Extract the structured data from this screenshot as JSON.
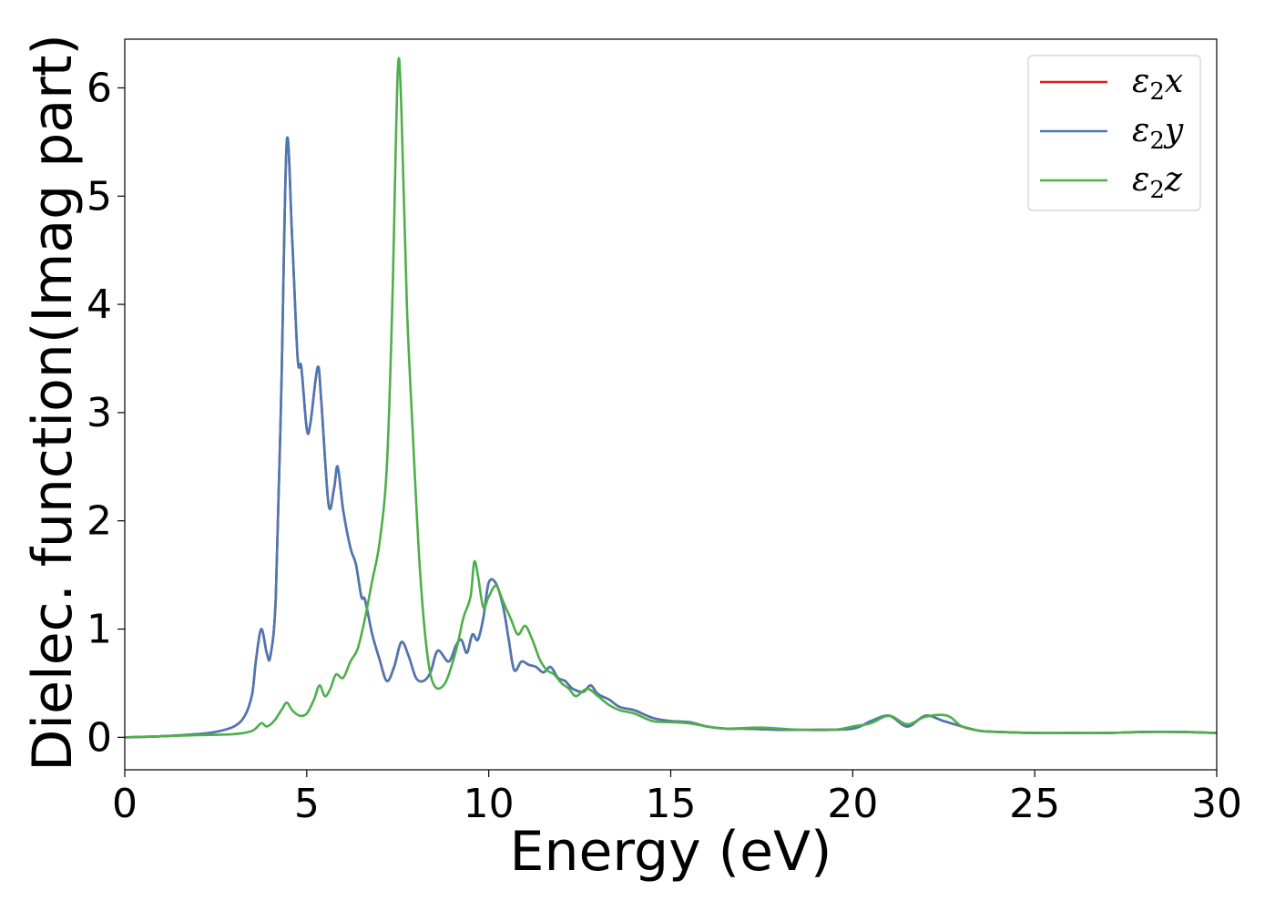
{
  "chart_data": {
    "type": "line",
    "title": "",
    "xlabel": "Energy (eV)",
    "ylabel": "Dielec. function(Imag part)",
    "xlim": [
      0,
      30
    ],
    "ylim": [
      -0.3,
      6.45
    ],
    "xticks": [
      0,
      5,
      10,
      15,
      20,
      25,
      30
    ],
    "yticks": [
      0,
      1,
      2,
      3,
      4,
      5,
      6
    ],
    "grid": false,
    "legend_position": "top-right",
    "series": [
      {
        "name": "ε₂x",
        "legend_parts": {
          "base": "ε",
          "sub": "2",
          "suffix": "x"
        },
        "color": "#e41a1c",
        "points": [
          [
            0,
            0
          ],
          [
            1,
            0.01
          ],
          [
            2,
            0.03
          ],
          [
            2.5,
            0.05
          ],
          [
            3,
            0.1
          ],
          [
            3.3,
            0.2
          ],
          [
            3.5,
            0.4
          ],
          [
            3.6,
            0.7
          ],
          [
            3.75,
            1.0
          ],
          [
            3.9,
            0.78
          ],
          [
            4.0,
            0.75
          ],
          [
            4.15,
            1.3
          ],
          [
            4.3,
            3.2
          ],
          [
            4.45,
            5.5
          ],
          [
            4.6,
            4.6
          ],
          [
            4.75,
            3.5
          ],
          [
            4.85,
            3.42
          ],
          [
            5.0,
            2.85
          ],
          [
            5.1,
            2.9
          ],
          [
            5.3,
            3.42
          ],
          [
            5.4,
            3.1
          ],
          [
            5.6,
            2.15
          ],
          [
            5.75,
            2.3
          ],
          [
            5.85,
            2.5
          ],
          [
            6.0,
            2.1
          ],
          [
            6.2,
            1.75
          ],
          [
            6.35,
            1.6
          ],
          [
            6.5,
            1.3
          ],
          [
            6.6,
            1.27
          ],
          [
            6.8,
            0.95
          ],
          [
            7.0,
            0.72
          ],
          [
            7.2,
            0.52
          ],
          [
            7.4,
            0.65
          ],
          [
            7.6,
            0.88
          ],
          [
            7.8,
            0.75
          ],
          [
            8.0,
            0.55
          ],
          [
            8.2,
            0.52
          ],
          [
            8.4,
            0.6
          ],
          [
            8.6,
            0.8
          ],
          [
            8.9,
            0.7
          ],
          [
            9.1,
            0.85
          ],
          [
            9.25,
            0.9
          ],
          [
            9.4,
            0.78
          ],
          [
            9.55,
            0.95
          ],
          [
            9.7,
            0.9
          ],
          [
            9.85,
            1.1
          ],
          [
            10.0,
            1.43
          ],
          [
            10.2,
            1.42
          ],
          [
            10.4,
            1.2
          ],
          [
            10.55,
            0.9
          ],
          [
            10.7,
            0.62
          ],
          [
            10.9,
            0.7
          ],
          [
            11.1,
            0.67
          ],
          [
            11.3,
            0.65
          ],
          [
            11.5,
            0.6
          ],
          [
            11.7,
            0.65
          ],
          [
            11.9,
            0.55
          ],
          [
            12.1,
            0.52
          ],
          [
            12.3,
            0.45
          ],
          [
            12.6,
            0.42
          ],
          [
            12.8,
            0.48
          ],
          [
            13.0,
            0.4
          ],
          [
            13.3,
            0.35
          ],
          [
            13.6,
            0.28
          ],
          [
            14.0,
            0.25
          ],
          [
            14.5,
            0.18
          ],
          [
            15.0,
            0.15
          ],
          [
            15.5,
            0.14
          ],
          [
            16.0,
            0.1
          ],
          [
            16.5,
            0.08
          ],
          [
            17.0,
            0.08
          ],
          [
            18.0,
            0.07
          ],
          [
            19.0,
            0.07
          ],
          [
            20.0,
            0.08
          ],
          [
            20.5,
            0.15
          ],
          [
            21.0,
            0.2
          ],
          [
            21.5,
            0.1
          ],
          [
            22.0,
            0.2
          ],
          [
            22.5,
            0.15
          ],
          [
            23.0,
            0.1
          ],
          [
            23.5,
            0.06
          ],
          [
            24.0,
            0.05
          ],
          [
            25.0,
            0.04
          ],
          [
            26.0,
            0.04
          ],
          [
            27.0,
            0.04
          ],
          [
            28.0,
            0.05
          ],
          [
            29.0,
            0.05
          ],
          [
            30.0,
            0.04
          ]
        ]
      },
      {
        "name": "ε₂y",
        "legend_parts": {
          "base": "ε",
          "sub": "2",
          "suffix": "y"
        },
        "color": "#4a78b4",
        "points": [
          [
            0,
            0
          ],
          [
            1,
            0.01
          ],
          [
            2,
            0.03
          ],
          [
            2.5,
            0.05
          ],
          [
            3,
            0.1
          ],
          [
            3.3,
            0.2
          ],
          [
            3.5,
            0.4
          ],
          [
            3.6,
            0.7
          ],
          [
            3.75,
            1.0
          ],
          [
            3.9,
            0.78
          ],
          [
            4.0,
            0.75
          ],
          [
            4.15,
            1.3
          ],
          [
            4.3,
            3.2
          ],
          [
            4.45,
            5.5
          ],
          [
            4.6,
            4.6
          ],
          [
            4.75,
            3.5
          ],
          [
            4.85,
            3.42
          ],
          [
            5.0,
            2.85
          ],
          [
            5.1,
            2.9
          ],
          [
            5.3,
            3.42
          ],
          [
            5.4,
            3.1
          ],
          [
            5.6,
            2.15
          ],
          [
            5.75,
            2.3
          ],
          [
            5.85,
            2.5
          ],
          [
            6.0,
            2.1
          ],
          [
            6.2,
            1.75
          ],
          [
            6.35,
            1.6
          ],
          [
            6.5,
            1.3
          ],
          [
            6.6,
            1.27
          ],
          [
            6.8,
            0.95
          ],
          [
            7.0,
            0.72
          ],
          [
            7.2,
            0.52
          ],
          [
            7.4,
            0.65
          ],
          [
            7.6,
            0.88
          ],
          [
            7.8,
            0.75
          ],
          [
            8.0,
            0.55
          ],
          [
            8.2,
            0.52
          ],
          [
            8.4,
            0.6
          ],
          [
            8.6,
            0.8
          ],
          [
            8.9,
            0.7
          ],
          [
            9.1,
            0.85
          ],
          [
            9.25,
            0.9
          ],
          [
            9.4,
            0.78
          ],
          [
            9.55,
            0.95
          ],
          [
            9.7,
            0.9
          ],
          [
            9.85,
            1.1
          ],
          [
            10.0,
            1.43
          ],
          [
            10.2,
            1.42
          ],
          [
            10.4,
            1.2
          ],
          [
            10.55,
            0.9
          ],
          [
            10.7,
            0.62
          ],
          [
            10.9,
            0.7
          ],
          [
            11.1,
            0.67
          ],
          [
            11.3,
            0.65
          ],
          [
            11.5,
            0.6
          ],
          [
            11.7,
            0.65
          ],
          [
            11.9,
            0.55
          ],
          [
            12.1,
            0.52
          ],
          [
            12.3,
            0.45
          ],
          [
            12.6,
            0.42
          ],
          [
            12.8,
            0.48
          ],
          [
            13.0,
            0.4
          ],
          [
            13.3,
            0.35
          ],
          [
            13.6,
            0.28
          ],
          [
            14.0,
            0.25
          ],
          [
            14.5,
            0.18
          ],
          [
            15.0,
            0.15
          ],
          [
            15.5,
            0.14
          ],
          [
            16.0,
            0.1
          ],
          [
            16.5,
            0.08
          ],
          [
            17.0,
            0.08
          ],
          [
            18.0,
            0.07
          ],
          [
            19.0,
            0.07
          ],
          [
            20.0,
            0.08
          ],
          [
            20.5,
            0.15
          ],
          [
            21.0,
            0.2
          ],
          [
            21.5,
            0.1
          ],
          [
            22.0,
            0.2
          ],
          [
            22.5,
            0.15
          ],
          [
            23.0,
            0.1
          ],
          [
            23.5,
            0.06
          ],
          [
            24.0,
            0.05
          ],
          [
            25.0,
            0.04
          ],
          [
            26.0,
            0.04
          ],
          [
            27.0,
            0.04
          ],
          [
            28.0,
            0.05
          ],
          [
            29.0,
            0.05
          ],
          [
            30.0,
            0.04
          ]
        ]
      },
      {
        "name": "ε₂z",
        "legend_parts": {
          "base": "ε",
          "sub": "2",
          "suffix": "z"
        },
        "color": "#4daf4a",
        "points": [
          [
            0,
            0
          ],
          [
            1,
            0.01
          ],
          [
            2,
            0.02
          ],
          [
            3,
            0.03
          ],
          [
            3.5,
            0.06
          ],
          [
            3.75,
            0.13
          ],
          [
            3.9,
            0.1
          ],
          [
            4.1,
            0.15
          ],
          [
            4.3,
            0.25
          ],
          [
            4.45,
            0.32
          ],
          [
            4.6,
            0.25
          ],
          [
            4.8,
            0.2
          ],
          [
            5.0,
            0.22
          ],
          [
            5.2,
            0.35
          ],
          [
            5.35,
            0.48
          ],
          [
            5.5,
            0.38
          ],
          [
            5.65,
            0.45
          ],
          [
            5.8,
            0.58
          ],
          [
            6.0,
            0.55
          ],
          [
            6.2,
            0.7
          ],
          [
            6.4,
            0.82
          ],
          [
            6.6,
            1.1
          ],
          [
            6.8,
            1.45
          ],
          [
            7.0,
            1.8
          ],
          [
            7.2,
            2.5
          ],
          [
            7.35,
            4.0
          ],
          [
            7.5,
            6.15
          ],
          [
            7.6,
            5.8
          ],
          [
            7.75,
            4.0
          ],
          [
            7.9,
            2.9
          ],
          [
            8.1,
            1.6
          ],
          [
            8.3,
            0.8
          ],
          [
            8.5,
            0.48
          ],
          [
            8.8,
            0.5
          ],
          [
            9.1,
            0.8
          ],
          [
            9.3,
            1.1
          ],
          [
            9.5,
            1.3
          ],
          [
            9.6,
            1.62
          ],
          [
            9.7,
            1.5
          ],
          [
            9.85,
            1.2
          ],
          [
            10.0,
            1.3
          ],
          [
            10.2,
            1.4
          ],
          [
            10.4,
            1.25
          ],
          [
            10.6,
            1.1
          ],
          [
            10.8,
            0.95
          ],
          [
            11.0,
            1.03
          ],
          [
            11.2,
            0.9
          ],
          [
            11.4,
            0.72
          ],
          [
            11.6,
            0.62
          ],
          [
            11.8,
            0.58
          ],
          [
            12.0,
            0.5
          ],
          [
            12.2,
            0.45
          ],
          [
            12.4,
            0.38
          ],
          [
            12.7,
            0.45
          ],
          [
            13.0,
            0.38
          ],
          [
            13.3,
            0.3
          ],
          [
            13.6,
            0.25
          ],
          [
            14.0,
            0.22
          ],
          [
            14.5,
            0.15
          ],
          [
            15.0,
            0.14
          ],
          [
            15.5,
            0.13
          ],
          [
            16.0,
            0.1
          ],
          [
            16.5,
            0.08
          ],
          [
            17.5,
            0.09
          ],
          [
            18.5,
            0.07
          ],
          [
            19.5,
            0.07
          ],
          [
            20.0,
            0.1
          ],
          [
            20.5,
            0.13
          ],
          [
            21.0,
            0.2
          ],
          [
            21.5,
            0.12
          ],
          [
            22.0,
            0.19
          ],
          [
            22.6,
            0.2
          ],
          [
            23.0,
            0.1
          ],
          [
            23.5,
            0.06
          ],
          [
            24.0,
            0.05
          ],
          [
            25.0,
            0.04
          ],
          [
            26.0,
            0.04
          ],
          [
            27.0,
            0.04
          ],
          [
            28.0,
            0.05
          ],
          [
            29.0,
            0.05
          ],
          [
            30.0,
            0.04
          ]
        ]
      }
    ]
  }
}
